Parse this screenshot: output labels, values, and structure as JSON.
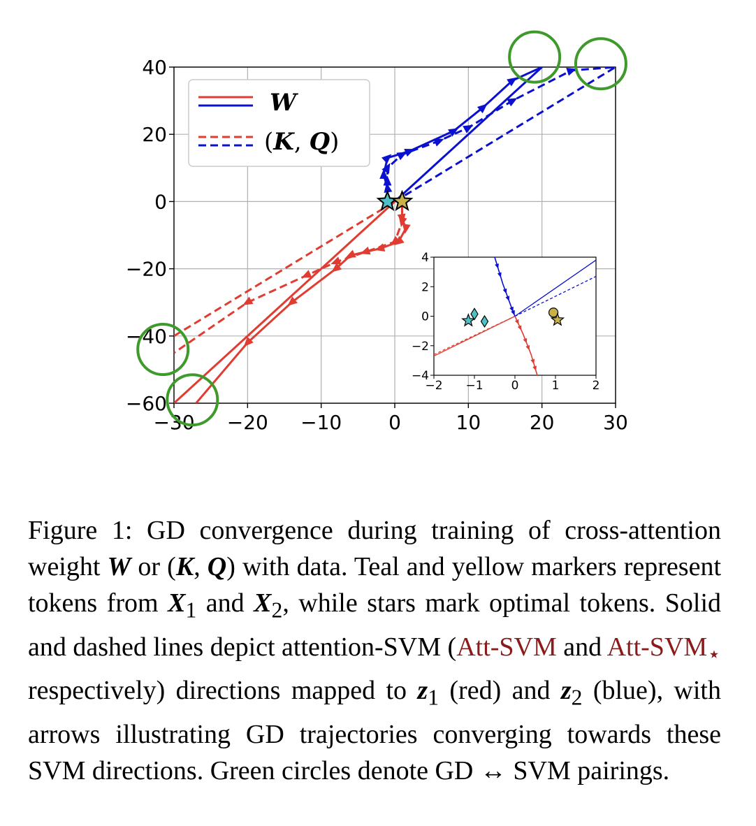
{
  "colors": {
    "red": "#e03c31",
    "blue": "#0a10d0",
    "green": "#3f9a2c",
    "teal": "#4fc1c6",
    "yellow": "#c9b14a",
    "svm_red": "#8b1a1a"
  },
  "chart_data": {
    "type": "line",
    "xlim": [
      -30,
      30
    ],
    "ylim": [
      -60,
      40
    ],
    "xticks": [
      "−30",
      "−20",
      "−10",
      "0",
      "10",
      "20",
      "30"
    ],
    "yticks": [
      "40",
      "20",
      "0",
      "−20",
      "−40",
      "−60"
    ],
    "legend": {
      "position": "top-left",
      "entries": [
        {
          "label": "W",
          "style": "solid"
        },
        {
          "label": "(K, Q)",
          "label_parts": [
            "(",
            "K",
            ", ",
            "Q",
            ")"
          ],
          "style": "dashed"
        }
      ]
    },
    "series": [
      {
        "name": "SVM W red",
        "color": "red",
        "style": "solid",
        "points": [
          [
            -30,
            -60
          ],
          [
            0,
            0
          ]
        ]
      },
      {
        "name": "SVM KQ red",
        "color": "red",
        "style": "dashed",
        "points": [
          [
            -30,
            -40
          ],
          [
            0,
            0
          ]
        ]
      },
      {
        "name": "SVM W blue",
        "color": "blue",
        "style": "solid",
        "points": [
          [
            0,
            0
          ],
          [
            20,
            40
          ]
        ]
      },
      {
        "name": "SVM KQ blue",
        "color": "blue",
        "style": "dashed",
        "points": [
          [
            0,
            0
          ],
          [
            30,
            40
          ]
        ]
      },
      {
        "name": "GD W red",
        "color": "red",
        "style": "solid",
        "arrows": true,
        "points": [
          [
            1,
            -1
          ],
          [
            1,
            -5
          ],
          [
            1.5,
            -8
          ],
          [
            0.5,
            -12
          ],
          [
            -2,
            -14
          ],
          [
            -6,
            -16
          ],
          [
            -8,
            -20
          ],
          [
            -14,
            -30
          ],
          [
            -20,
            -42
          ],
          [
            -27,
            -60
          ]
        ]
      },
      {
        "name": "GD KQ red",
        "color": "red",
        "style": "dashed",
        "arrows": true,
        "points": [
          [
            1,
            -1
          ],
          [
            1,
            -6
          ],
          [
            0,
            -12
          ],
          [
            -4,
            -15
          ],
          [
            -8,
            -18
          ],
          [
            -12,
            -22
          ],
          [
            -20,
            -30
          ],
          [
            -30,
            -45
          ]
        ]
      },
      {
        "name": "GD W blue",
        "color": "blue",
        "style": "solid",
        "arrows": true,
        "points": [
          [
            -1,
            1
          ],
          [
            -1,
            4
          ],
          [
            -1.5,
            8
          ],
          [
            -1,
            13
          ],
          [
            2,
            15
          ],
          [
            8,
            21
          ],
          [
            12,
            28
          ],
          [
            16,
            36
          ],
          [
            20,
            40
          ]
        ]
      },
      {
        "name": "GD KQ blue",
        "color": "blue",
        "style": "dashed",
        "arrows": true,
        "points": [
          [
            -1,
            1
          ],
          [
            -1,
            6
          ],
          [
            -1,
            10
          ],
          [
            1,
            14
          ],
          [
            6,
            18
          ],
          [
            10,
            22
          ],
          [
            16,
            30
          ],
          [
            24,
            39
          ],
          [
            30,
            40
          ]
        ]
      }
    ],
    "markers": [
      {
        "type": "star",
        "color": "teal",
        "x": -1,
        "y": 0
      },
      {
        "type": "star",
        "color": "yellow",
        "x": 1,
        "y": 0
      }
    ],
    "circles": [
      {
        "x": 19,
        "y": 43
      },
      {
        "x": 28,
        "y": 41
      },
      {
        "x": -31.5,
        "y": -44
      },
      {
        "x": -27.5,
        "y": -59
      }
    ],
    "inset": {
      "xlim": [
        -2,
        2
      ],
      "ylim": [
        -4,
        4
      ],
      "xticks": [
        "−2",
        "−1",
        "0",
        "1",
        "2"
      ],
      "yticks": [
        "4",
        "2",
        "0",
        "−2",
        "−4"
      ],
      "svm_lines": [
        {
          "color": "red",
          "style": "solid",
          "points": [
            [
              -2,
              -2.7
            ],
            [
              0,
              0
            ]
          ]
        },
        {
          "color": "red",
          "style": "dashed",
          "points": [
            [
              -2,
              -2.6
            ],
            [
              0,
              0
            ]
          ]
        },
        {
          "color": "blue",
          "style": "solid",
          "points": [
            [
              0,
              0
            ],
            [
              2,
              3.8
            ]
          ]
        },
        {
          "color": "blue",
          "style": "dashed",
          "points": [
            [
              0,
              0
            ],
            [
              2,
              2.7
            ]
          ]
        }
      ],
      "gd_lines": [
        {
          "color": "blue",
          "points": [
            [
              -0.5,
              4
            ],
            [
              -0.3,
              2.2
            ],
            [
              -0.1,
              0.7
            ],
            [
              0,
              0
            ]
          ]
        },
        {
          "color": "red",
          "points": [
            [
              0,
              0
            ],
            [
              0.2,
              -1.2
            ],
            [
              0.4,
              -2.6
            ],
            [
              0.55,
              -4
            ]
          ]
        }
      ],
      "markers": [
        {
          "type": "star",
          "color": "teal",
          "x": -1.15,
          "y": -0.3
        },
        {
          "type": "diamond",
          "color": "teal",
          "x": -1.0,
          "y": 0.15
        },
        {
          "type": "diamond",
          "color": "teal",
          "x": -0.75,
          "y": -0.35
        },
        {
          "type": "circle",
          "color": "yellow",
          "x": 0.95,
          "y": 0.25
        },
        {
          "type": "star",
          "color": "yellow",
          "x": 1.05,
          "y": -0.25
        }
      ]
    }
  },
  "caption": {
    "label": "Figure 1:",
    "t1": " GD convergence during training of cross-attention weight ",
    "W": "W",
    "t2": " or (",
    "K": "K",
    "comma": ", ",
    "Q": "Q",
    "t3": ") with data. Teal and yellow markers represent tokens from ",
    "X": "X",
    "sub1": "1",
    "t4": " and ",
    "X2": "X",
    "sub2": "2",
    "t5": ", while stars mark optimal tokens. Solid and dashed lines depict attention-SVM (",
    "svm1": "Att-SVM",
    "t6": " and ",
    "svm2": "Att-SVM",
    "star": "⋆",
    "t7": " respectively) directions mapped to ",
    "z1": "z",
    "zsub1": "1",
    "t8": " (red) and ",
    "z2": "z",
    "zsub2": "2",
    "t9": " (blue), with arrows illustrating GD trajectories converging towards these SVM directions. Green circles denote GD ↔ SVM pairings."
  }
}
